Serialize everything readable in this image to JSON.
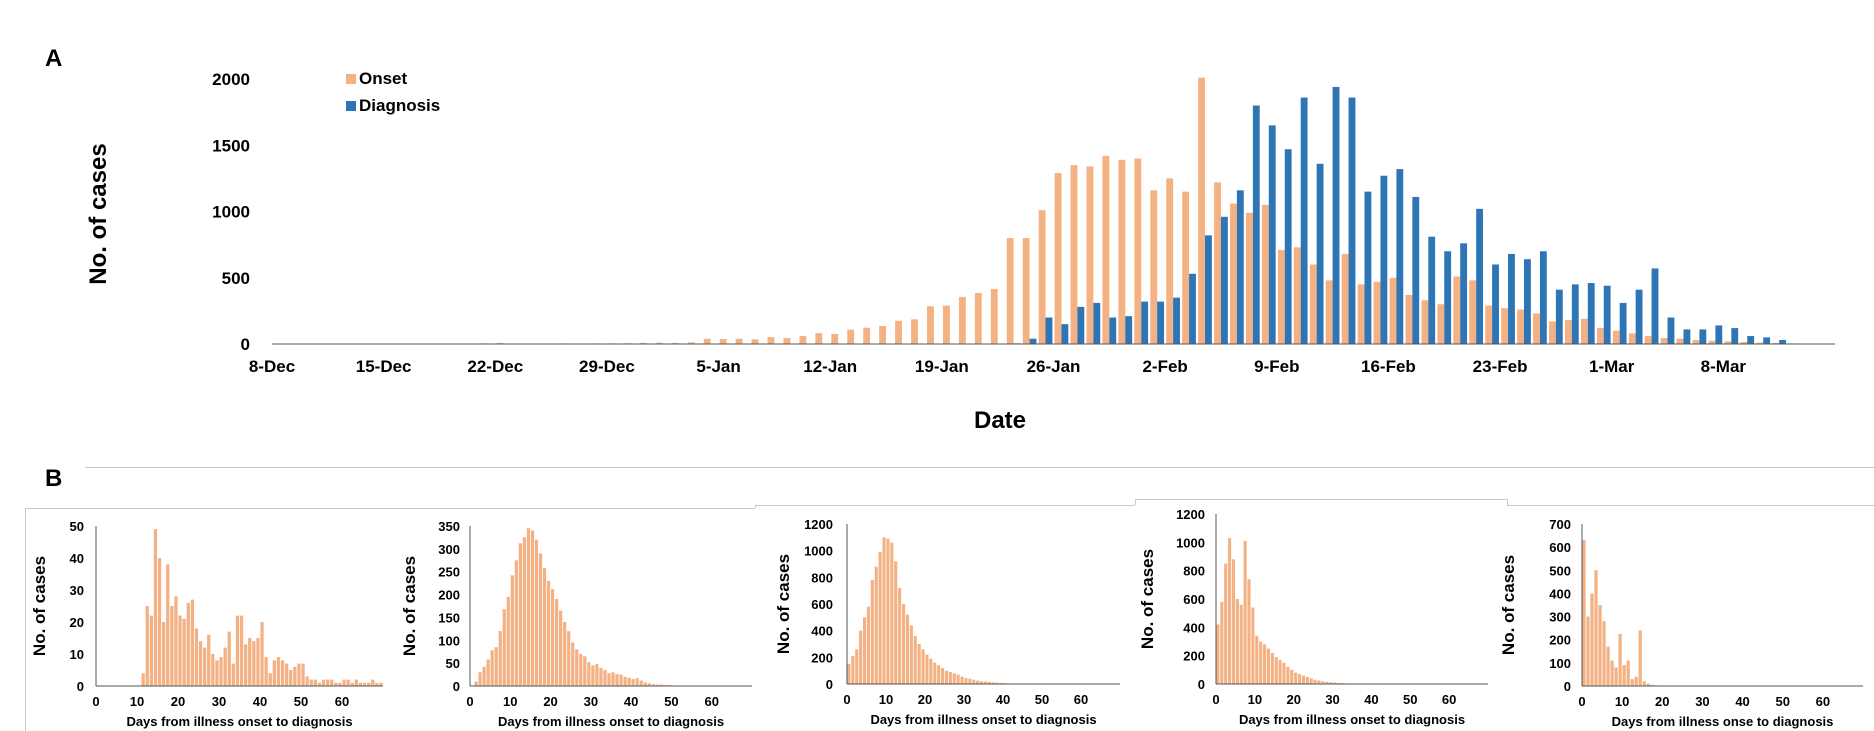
{
  "panels": {
    "a": "A",
    "b": "B"
  },
  "colors": {
    "onset": "#F4B183",
    "diagnosis": "#2E75B6"
  },
  "chart_data": [
    {
      "type": "bar",
      "title": "",
      "xlabel": "Date",
      "ylabel": "No. of cases",
      "ylim": [
        0,
        2000
      ],
      "yticks": [
        0,
        500,
        1000,
        1500,
        2000
      ],
      "xticks": [
        "8-Dec",
        "15-Dec",
        "22-Dec",
        "29-Dec",
        "5-Jan",
        "12-Jan",
        "19-Jan",
        "26-Jan",
        "2-Feb",
        "9-Feb",
        "16-Feb",
        "23-Feb",
        "1-Mar",
        "8-Mar"
      ],
      "legend": {
        "position": "top-left"
      },
      "series": [
        {
          "name": "Onset",
          "color": "#F4B183",
          "values": [
            0,
            0,
            0,
            0,
            0,
            0,
            0,
            0,
            0,
            0,
            0,
            0,
            0,
            5,
            8,
            3,
            3,
            0,
            4,
            2,
            4,
            5,
            6,
            8,
            10,
            8,
            12,
            40,
            37,
            40,
            35,
            52,
            45,
            60,
            82,
            76,
            108,
            123,
            136,
            175,
            186,
            285,
            290,
            355,
            385,
            415,
            800,
            800,
            1010,
            1290,
            1350,
            1340,
            1420,
            1390,
            1400,
            1160,
            1250,
            1150,
            2010,
            1220,
            1060,
            990,
            1050,
            710,
            730,
            600,
            480,
            680,
            450,
            470,
            500,
            370,
            330,
            300,
            510,
            480,
            290,
            270,
            260,
            230,
            170,
            180,
            190,
            120,
            100,
            80,
            60,
            45,
            40,
            30,
            25,
            20,
            15,
            10,
            8,
            5,
            3,
            2
          ]
        },
        {
          "name": "Diagnosis",
          "color": "#2E75B6",
          "values": [
            0,
            0,
            0,
            0,
            0,
            0,
            0,
            0,
            0,
            0,
            0,
            0,
            0,
            0,
            0,
            0,
            0,
            0,
            0,
            0,
            0,
            0,
            0,
            0,
            0,
            0,
            0,
            0,
            0,
            0,
            0,
            0,
            0,
            0,
            0,
            0,
            0,
            0,
            0,
            0,
            0,
            0,
            0,
            0,
            0,
            0,
            5,
            40,
            200,
            150,
            280,
            310,
            200,
            210,
            320,
            320,
            350,
            530,
            820,
            960,
            1160,
            1800,
            1650,
            1470,
            1860,
            1360,
            1940,
            1860,
            1150,
            1270,
            1320,
            1110,
            810,
            700,
            760,
            1020,
            600,
            680,
            640,
            700,
            410,
            450,
            460,
            440,
            310,
            410,
            570,
            200,
            110,
            110,
            140,
            120,
            60,
            50,
            30
          ]
        }
      ]
    },
    {
      "type": "bar",
      "xlabel": "Days from illness  onset to diagnosis",
      "ylabel": "No. of cases",
      "ylim": [
        0,
        50
      ],
      "yticks": [
        0,
        10,
        20,
        30,
        40,
        50
      ],
      "xlim": [
        0,
        70
      ],
      "xticks": [
        0,
        10,
        20,
        30,
        40,
        50,
        60
      ],
      "series": [
        {
          "name": "",
          "color": "#F4B183",
          "x_start": 11,
          "values": [
            4,
            25,
            22,
            49,
            40,
            20,
            38,
            25,
            28,
            22,
            21,
            26,
            27,
            18,
            14,
            12,
            16,
            10,
            8,
            9,
            12,
            17,
            7,
            22,
            22,
            13,
            15,
            14,
            15,
            20,
            9,
            4,
            8,
            9,
            8,
            7,
            5,
            6,
            7,
            7,
            3,
            2,
            2,
            1,
            2,
            2,
            2,
            1,
            1,
            2,
            2,
            1,
            2,
            1,
            1,
            1,
            2,
            1,
            1
          ]
        }
      ]
    },
    {
      "type": "bar",
      "xlabel": "Days from illness  onset to diagnosis",
      "ylabel": "No. of cases",
      "ylim": [
        0,
        350
      ],
      "yticks": [
        0,
        50,
        100,
        150,
        200,
        250,
        300,
        350
      ],
      "xlim": [
        0,
        70
      ],
      "xticks": [
        0,
        10,
        20,
        30,
        40,
        50,
        60
      ],
      "series": [
        {
          "name": "",
          "color": "#F4B183",
          "x_start": 1,
          "values": [
            10,
            30,
            42,
            58,
            78,
            85,
            120,
            168,
            195,
            242,
            275,
            312,
            325,
            345,
            340,
            320,
            290,
            258,
            230,
            212,
            190,
            165,
            140,
            120,
            95,
            80,
            70,
            65,
            52,
            45,
            48,
            40,
            35,
            28,
            30,
            26,
            25,
            20,
            18,
            15,
            17,
            12,
            8,
            6,
            4,
            3,
            3,
            2,
            2,
            1,
            1,
            1
          ]
        }
      ]
    },
    {
      "type": "bar",
      "xlabel": "Days from illness  onset to diagnosis",
      "ylabel": "No. of cases",
      "ylim": [
        0,
        1200
      ],
      "yticks": [
        0,
        200,
        400,
        600,
        800,
        1000,
        1200
      ],
      "xlim": [
        0,
        70
      ],
      "xticks": [
        0,
        10,
        20,
        30,
        40,
        50,
        60
      ],
      "series": [
        {
          "name": "",
          "color": "#F4B183",
          "x_start": 0,
          "values": [
            150,
            210,
            260,
            400,
            500,
            580,
            780,
            880,
            990,
            1100,
            1090,
            1060,
            920,
            720,
            600,
            520,
            440,
            360,
            300,
            260,
            220,
            190,
            160,
            140,
            120,
            100,
            90,
            80,
            70,
            55,
            45,
            40,
            32,
            25,
            20,
            18,
            15,
            12,
            10,
            8,
            6,
            5,
            4,
            3,
            2,
            2,
            1,
            1
          ]
        }
      ]
    },
    {
      "type": "bar",
      "xlabel": "Days from illness  onset to diagnosis",
      "ylabel": "No. of cases",
      "ylim": [
        0,
        1200
      ],
      "yticks": [
        0,
        200,
        400,
        600,
        800,
        1000,
        1200
      ],
      "xlim": [
        0,
        70
      ],
      "xticks": [
        0,
        10,
        20,
        30,
        40,
        50,
        60
      ],
      "series": [
        {
          "name": "",
          "color": "#F4B183",
          "x_start": 0,
          "values": [
            420,
            580,
            850,
            1030,
            880,
            600,
            560,
            1010,
            740,
            540,
            340,
            300,
            280,
            250,
            220,
            190,
            170,
            150,
            120,
            100,
            80,
            70,
            60,
            50,
            40,
            30,
            25,
            20,
            15,
            12,
            10,
            8,
            6,
            5,
            4,
            3,
            2,
            2,
            1,
            1
          ]
        }
      ]
    },
    {
      "type": "bar",
      "xlabel": "Days from illness  onse to diagnosis",
      "ylabel": "No. of cases",
      "ylim": [
        0,
        700
      ],
      "yticks": [
        0,
        100,
        200,
        300,
        400,
        500,
        600,
        700
      ],
      "xlim": [
        0,
        70
      ],
      "xticks": [
        0,
        10,
        20,
        30,
        40,
        50,
        60
      ],
      "series": [
        {
          "name": "",
          "color": "#F4B183",
          "x_start": 0,
          "values": [
            630,
            300,
            400,
            500,
            350,
            280,
            170,
            110,
            80,
            225,
            90,
            110,
            30,
            40,
            240,
            20,
            10,
            5,
            3,
            2
          ]
        }
      ]
    }
  ]
}
